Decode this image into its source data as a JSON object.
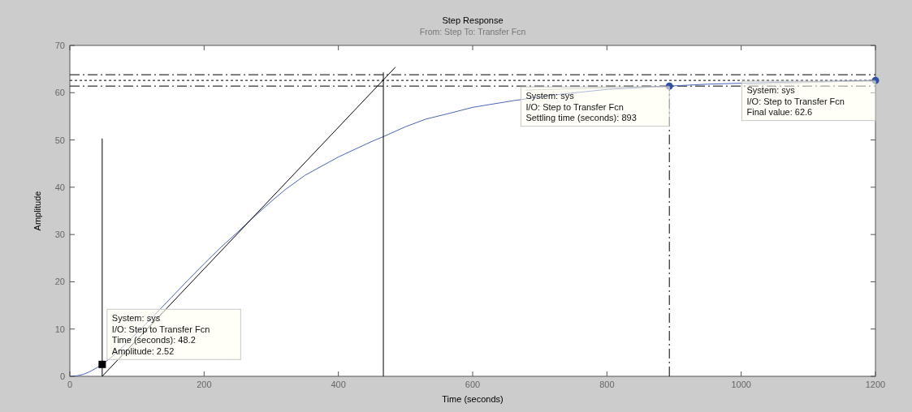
{
  "chart_data": {
    "type": "line",
    "title": "Step Response",
    "subtitle": "From: Step  To: Transfer Fcn",
    "xlabel": "Time (seconds)",
    "ylabel": "Amplitude",
    "xlim": [
      0,
      1200
    ],
    "xticks": [
      0,
      200,
      400,
      600,
      800,
      1000,
      1200
    ],
    "ylim": [
      0,
      70
    ],
    "yticks": [
      0,
      10,
      20,
      30,
      40,
      50,
      60,
      70
    ],
    "grid": false,
    "series": [
      {
        "color": "#4a64b8",
        "marker": "none",
        "line_style": "solid",
        "x": [
          0,
          10,
          20,
          30,
          40,
          48.2,
          60,
          80,
          100,
          125,
          150,
          175,
          200,
          225,
          250,
          270,
          300,
          320,
          350,
          400,
          450,
          467,
          500,
          530,
          570,
          600,
          660,
          720,
          800,
          893,
          950,
          1050,
          1130,
          1200
        ],
        "values": [
          0,
          0.1,
          0.4,
          1.0,
          1.8,
          2.52,
          3.8,
          6.4,
          9.2,
          12.8,
          16.5,
          20.2,
          23.8,
          27.3,
          30.5,
          33.2,
          37.0,
          39.4,
          42.5,
          46.4,
          49.7,
          50.7,
          52.8,
          54.4,
          55.8,
          56.9,
          58.3,
          59.5,
          60.7,
          61.4,
          61.8,
          62.2,
          62.4,
          62.6
        ]
      },
      {
        "type": "line",
        "color": "#000000",
        "marker": "none",
        "line_style": "solid",
        "x": [
          48.2,
          485
        ],
        "values": [
          0,
          65.4
        ]
      },
      {
        "type": "line",
        "color": "#000000",
        "marker": "none",
        "line_style": "solid",
        "x": [
          48.2,
          48.2
        ],
        "values": [
          0,
          50.3
        ]
      },
      {
        "type": "line",
        "color": "#000000",
        "marker": "none",
        "line_style": "solid",
        "x": [
          467,
          467
        ],
        "values": [
          0,
          64.3
        ]
      },
      {
        "type": "line",
        "color": "#000000",
        "marker": "none",
        "line_style": "dashed",
        "x": [
          893,
          893
        ],
        "values": [
          0,
          61.4
        ]
      },
      {
        "type": "scatter",
        "color": "#000000",
        "marker": "square",
        "x": [
          48.2
        ],
        "values": [
          2.52
        ]
      },
      {
        "type": "scatter",
        "color": "#3050a8",
        "marker": "circle",
        "x": [
          893,
          1200
        ],
        "values": [
          61.4,
          62.6
        ]
      }
    ],
    "ref_lines": [
      {
        "axis": "y",
        "value": 63.8,
        "color": "#000000",
        "line_style": "dashed"
      },
      {
        "axis": "y",
        "value": 62.6,
        "color": "#000000",
        "line_style": "dotted"
      },
      {
        "axis": "y",
        "value": 61.4,
        "color": "#000000",
        "line_style": "dashed"
      }
    ],
    "annotations": [
      {
        "text": "System: sys\nI/O: Step to Transfer Fcn\nTime (seconds): 48.2\nAmplitude: 2.52",
        "x": 48.2,
        "y": 2.52
      },
      {
        "text": "System: sys\nI/O: Step to Transfer Fcn\nSettling time (seconds): 893",
        "x": 893,
        "y": 61.4
      },
      {
        "text": "System: sys\nI/O: Step to Transfer Fcn\nFinal value: 62.6",
        "x": 1200,
        "y": 62.6
      }
    ]
  }
}
